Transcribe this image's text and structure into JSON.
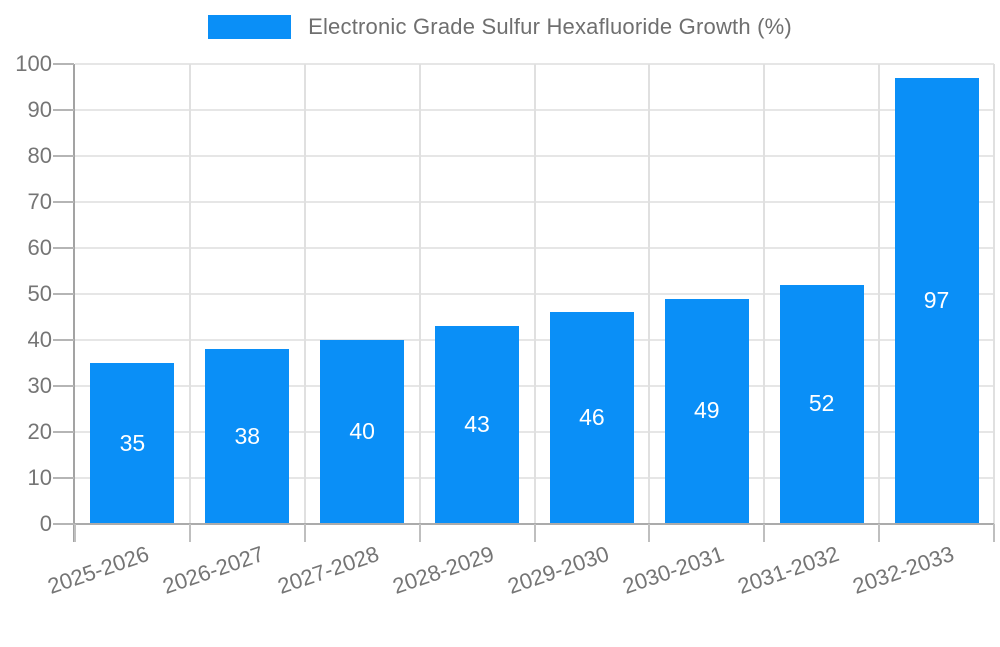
{
  "legend": {
    "swatch_color": "#0a8ff7",
    "label": "Electronic Grade Sulfur Hexafluoride Growth (%)"
  },
  "chart_data": {
    "type": "bar",
    "title": "Electronic Grade Sulfur Hexafluoride Growth (%)",
    "categories": [
      "2025-2026",
      "2026-2027",
      "2027-2028",
      "2028-2029",
      "2029-2030",
      "2030-2031",
      "2031-2032",
      "2032-2033"
    ],
    "values": [
      35,
      38,
      40,
      43,
      46,
      49,
      52,
      97
    ],
    "xlabel": "",
    "ylabel": "",
    "ylim": [
      0,
      100
    ],
    "yticks": [
      0,
      10,
      20,
      30,
      40,
      50,
      60,
      70,
      80,
      90,
      100
    ],
    "grid": "both",
    "legend_position": "top-center",
    "bar_color": "#0a8ff7",
    "bar_label_color": "#ffffff",
    "axis_text_color": "#757575",
    "xlabel_rotation_deg": -19
  }
}
